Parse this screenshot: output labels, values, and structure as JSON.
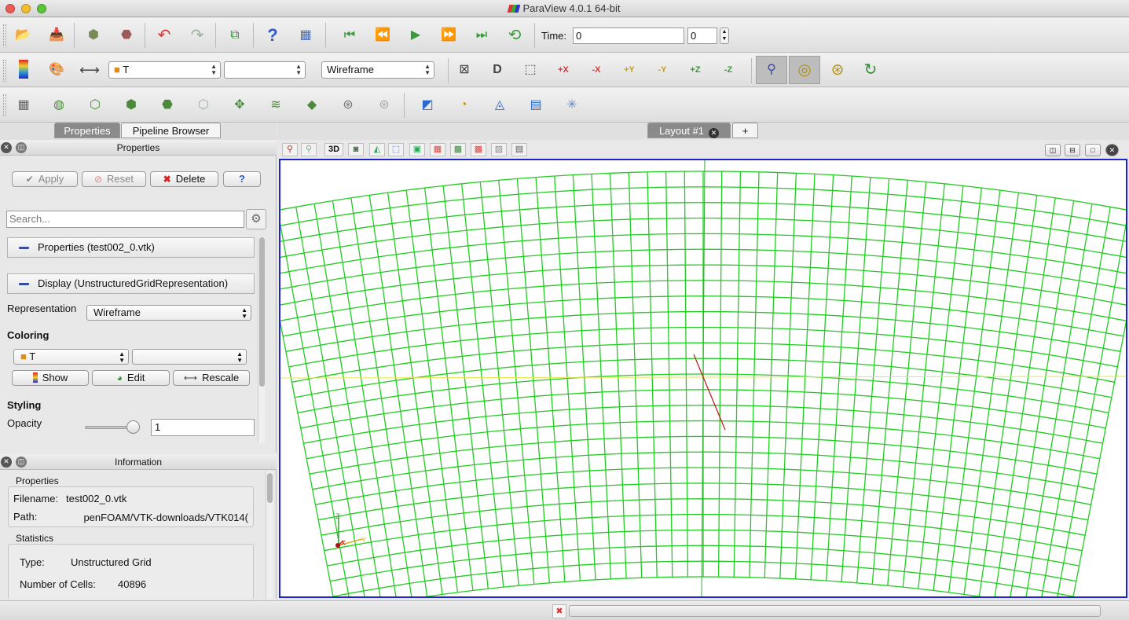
{
  "window": {
    "title": "ParaView 4.0.1 64-bit"
  },
  "toolbar_main": {
    "time_label": "Time:",
    "time_value": "0",
    "time_index": "0"
  },
  "toolbar_display": {
    "color_by": "T",
    "component": "",
    "representation": "Wireframe"
  },
  "panel_tabs": {
    "properties": "Properties",
    "pipeline_browser": "Pipeline Browser"
  },
  "properties_panel": {
    "title": "Properties",
    "apply": "Apply",
    "reset": "Reset",
    "delete": "Delete",
    "help": "?",
    "search_placeholder": "Search...",
    "section_properties": "Properties (test002_0.vtk)",
    "section_display": "Display (UnstructuredGridRepresentation)",
    "representation_label": "Representation",
    "representation_value": "Wireframe",
    "coloring_header": "Coloring",
    "coloring_array": "T",
    "coloring_component": "",
    "show": "Show",
    "edit": "Edit",
    "rescale": "Rescale",
    "styling_header": "Styling",
    "opacity_label": "Opacity",
    "opacity_value": "1",
    "opacity_level": 0.92
  },
  "information_panel": {
    "title": "Information",
    "properties_group": "Properties",
    "filename_label": "Filename:",
    "filename_value": "test002_0.vtk",
    "path_label": "Path:",
    "path_value": ")penFOAM/VTK-downloads/VTK014",
    "statistics_group": "Statistics",
    "type_label": "Type:",
    "type_value": "Unstructured Grid",
    "cells_label": "Number of Cells:",
    "cells_value": "40896"
  },
  "layout_tabs": {
    "active": "Layout #1",
    "add": "+"
  },
  "view_toolbar": {
    "mode_3d": "3D"
  },
  "render_view": {
    "mesh_color": "#22cc22",
    "axes_labels": {
      "x": "X",
      "y": "Y",
      "z": "Z"
    }
  },
  "colors": {
    "view_border": "#1f24c7"
  }
}
